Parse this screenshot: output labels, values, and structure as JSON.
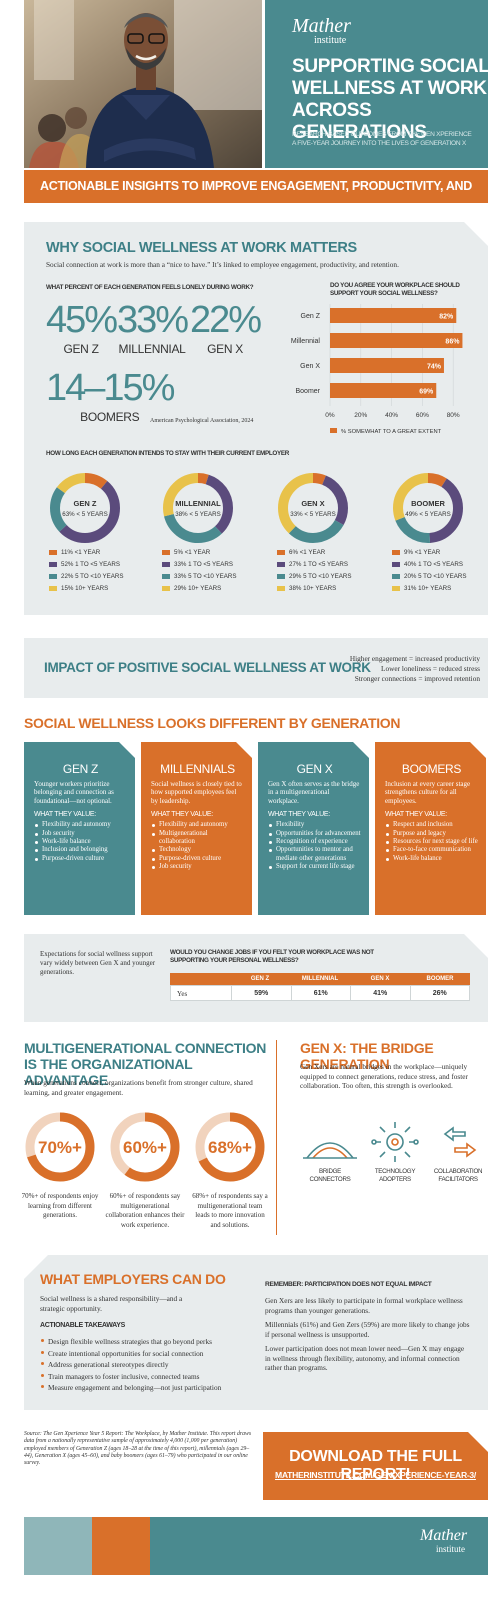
{
  "header": {
    "brand": "Mather",
    "brand_sub": "institute",
    "title": [
      "SUPPORTING SOCIAL",
      "WELLNESS AT WORK",
      "ACROSS GENERATIONS"
    ],
    "subtitle": [
      "RESEARCH-BASED OUTCOMES FROM THE GEN XPERIENCE",
      "A FIVE-YEAR JOURNEY INTO THE LIVES OF GENERATION X"
    ]
  },
  "banner": "ACTIONABLE INSIGHTS TO IMPROVE ENGAGEMENT, PRODUCTIVITY, AND RETENTION",
  "why": {
    "title": "WHY SOCIAL WELLNESS AT WORK MATTERS",
    "intro": "Social connection at work is more than a “nice to have.” It’s linked to employee engagement, productivity, and retention.",
    "lonely": {
      "question": "WHAT PERCENT OF EACH GENERATION FEELS LONELY DURING WORK?",
      "items": [
        {
          "value": "45%",
          "label": "GEN Z"
        },
        {
          "value": "33%",
          "label": "MILLENNIAL"
        },
        {
          "value": "22%",
          "label": "GEN X"
        },
        {
          "value": "14–15%",
          "label": "BOOMERS"
        }
      ],
      "source": "American Psychological Association, 2024"
    },
    "support": {
      "type": "bar",
      "title": "DO YOU AGREE YOUR WORKPLACE SHOULD SUPPORT YOUR SOCIAL WELLNESS?",
      "categories": [
        "Gen Z",
        "Millennial",
        "Gen X",
        "Boomer"
      ],
      "values": [
        82,
        86,
        74,
        69
      ],
      "value_labels": [
        "82%",
        "86%",
        "74%",
        "69%"
      ],
      "xlim": [
        0,
        90
      ],
      "xticks": [
        {
          "value": 0,
          "label": "0%"
        },
        {
          "value": 20,
          "label": "20%"
        },
        {
          "value": 40,
          "label": "40%"
        },
        {
          "value": 60,
          "label": "60%"
        },
        {
          "value": 80,
          "label": "80%"
        }
      ],
      "color": "#d9702a",
      "legend": "% SOMEWHAT TO A GREAT EXTENT"
    },
    "tenure": {
      "type": "donut",
      "title": "HOW LONG EACH GENERATION INTENDS TO STAY WITH THEIR CURRENT EMPLOYER",
      "segments": [
        "<1 YEAR",
        "1 TO <5 YEARS",
        "5 TO <10 YEARS",
        "10+ YEARS"
      ],
      "colors": [
        "#d9702a",
        "#5b4b7c",
        "#4a8a8f",
        "#e8c24a"
      ],
      "charts": [
        {
          "name": "GEN Z",
          "center": "63% < 5 YEARS",
          "values": [
            11,
            52,
            22,
            15
          ],
          "value_labels": [
            "11%",
            "52%",
            "22%",
            "15%"
          ]
        },
        {
          "name": "MILLENNIAL",
          "center": "38% < 5 YEARS",
          "values": [
            5,
            33,
            33,
            29
          ],
          "value_labels": [
            "5%",
            "33%",
            "33%",
            "29%"
          ]
        },
        {
          "name": "GEN X",
          "center": "33% < 5 YEARS",
          "values": [
            6,
            27,
            29,
            38
          ],
          "value_labels": [
            "6%",
            "27%",
            "29%",
            "38%"
          ]
        },
        {
          "name": "BOOMER",
          "center": "49% < 5 YEARS",
          "values": [
            9,
            40,
            20,
            31
          ],
          "value_labels": [
            "9%",
            "40%",
            "20%",
            "31%"
          ]
        }
      ]
    }
  },
  "impact": {
    "title": "IMPACT OF POSITIVE SOCIAL WELLNESS AT WORK",
    "lines": [
      "Higher engagement = increased productivity",
      "Lower loneliness = reduced stress",
      "Stronger connections = improved retention"
    ]
  },
  "generations": {
    "title": "SOCIAL WELLNESS LOOKS DIFFERENT BY GENERATION",
    "value_title": "WHAT THEY VALUE:",
    "cards": [
      {
        "name": "GEN Z",
        "description": "Younger workers prioritize belonging and connection as foundational—not optional.",
        "items": [
          "Flexibility and autonomy",
          "Job security",
          "Work-life balance",
          "Inclusion and belonging",
          "Purpose-driven culture"
        ]
      },
      {
        "name": "MILLENNIALS",
        "description": "Social wellness is closely tied to how supported employees feel by leadership.",
        "items": [
          "Flexibility and autonomy",
          "Multigenerational collaboration",
          "Technology",
          "Purpose-driven culture",
          "Job security"
        ]
      },
      {
        "name": "GEN X",
        "description": "Gen X often serves as the bridge in a multigenerational workplace.",
        "items": [
          "Flexibility",
          "Opportunities for advancement",
          "Recognition of experience",
          "Opportunities to mentor and mediate other generations",
          "Support for current life stage"
        ]
      },
      {
        "name": "BOOMERS",
        "description": "Inclusion at every career stage strengthens culture for all employees.",
        "items": [
          "Respect and inclusion",
          "Purpose and legacy",
          "Resources for next stage of life",
          "Face-to-face communication",
          "Work-life balance"
        ]
      }
    ]
  },
  "change_jobs": {
    "note": "Expectations for social wellness support vary widely between Gen X and younger generations.",
    "question": "WOULD YOU CHANGE JOBS IF YOU FELT YOUR WORKPLACE WAS NOT SUPPORTING YOUR PERSONAL WELLNESS?",
    "table": {
      "header": [
        "GEN Z",
        "MILLENNIAL",
        "GEN X",
        "BOOMER"
      ],
      "row_label": "Yes",
      "values": [
        "59%",
        "61%",
        "41%",
        "26%"
      ]
    }
  },
  "multigen": {
    "title": "MULTIGENERATIONAL CONNECTION IS THE ORGANIZATIONAL ADVANTAGE",
    "intro": "When generations connect, organizations benefit from stronger culture, shared learning, and greater engagement.",
    "stats": [
      {
        "value": 70,
        "label": "70%+",
        "text": "70%+ of respondents enjoy learning from different generations."
      },
      {
        "value": 60,
        "label": "60%+",
        "text": "60%+ of respondents say multigenerational collaboration enhances their work experience."
      },
      {
        "value": 68,
        "label": "68%+",
        "text": "68%+ of respondents say a multigenerational team leads to more innovation and solutions."
      }
    ]
  },
  "bridge": {
    "title": "GEN X: THE BRIDGE GENERATION",
    "text": "Gen Xers are natural bridges in the workplace—uniquely equipped to connect generations, reduce stress, and foster collaboration. Too often, this strength is overlooked.",
    "icons": [
      "BRIDGE CONNECTORS",
      "TECHNOLOGY ADOPTERS",
      "COLLABORATION FACILITATORS"
    ]
  },
  "employers": {
    "title": "WHAT EMPLOYERS CAN DO",
    "text": "Social wellness is a shared responsibility—and a strategic opportunity.",
    "takeaways_title": "ACTIONABLE TAKEAWAYS",
    "takeaways": [
      "Design flexible wellness strategies that go beyond perks",
      "Create intentional opportunities for social connection",
      "Address generational stereotypes directly",
      "Train managers to foster inclusive, connected teams",
      "Measure engagement and belonging—not just participation"
    ],
    "remember_title": "REMEMBER: PARTICIPATION DOES NOT EQUAL IMPACT",
    "remember": [
      "Gen Xers are less likely to participate in formal workplace wellness programs than younger generations.",
      "Millennials (61%) and Gen Zers (59%) are more likely to change jobs if personal wellness is unsupported.",
      "Lower participation does not mean lower need—Gen X may engage in wellness through flexibility, autonomy, and informal connection rather than programs."
    ]
  },
  "footer": {
    "source": "Source: The Gen Xperience Year 5 Report: The Workplace, by Mather Institute. This report draws data from a nationally representative sample of approximately 4,000 (1,000 per generation) employed members of Generation Z (ages 18–28 at the time of this report), millennials (ages 29–44), Generation X (ages 45–60), and baby boomers (ages 61–79) who participated in our online survey.",
    "cta": "DOWNLOAD THE FULL REPORT!",
    "url": "MATHERINSTITUTE.COM/GEN-XPERIENCE-YEAR-3/",
    "brand": "Mather",
    "brand_sub": "institute"
  }
}
